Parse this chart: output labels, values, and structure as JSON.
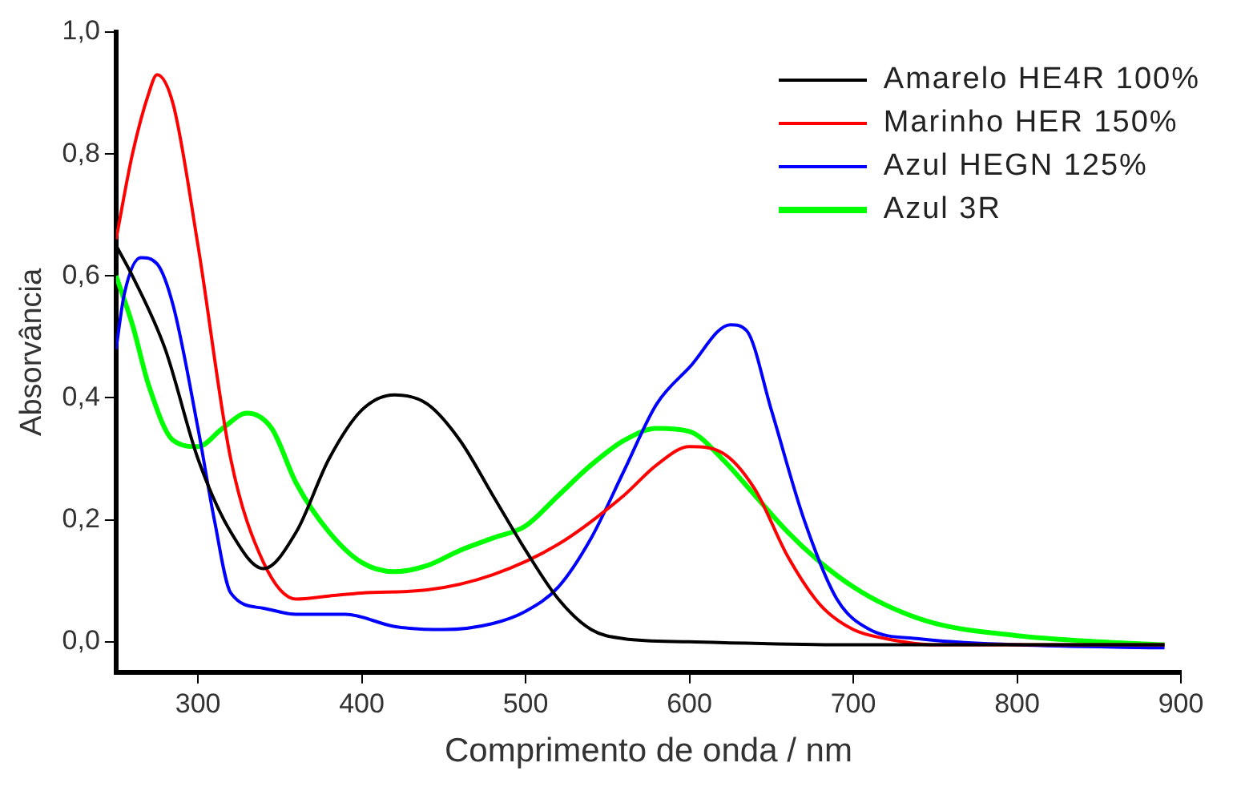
{
  "chart_data": {
    "type": "line",
    "xlabel": "Comprimento de onda / nm",
    "ylabel": "Absorvância",
    "xlim": [
      250,
      900
    ],
    "xticks": [
      300,
      400,
      500,
      600,
      700,
      800,
      900
    ],
    "ylim": [
      -0.05,
      1.0
    ],
    "yticks": [
      {
        "value": 0,
        "label": "0,0"
      },
      {
        "value": 0.2,
        "label": "0,2"
      },
      {
        "value": 0.4,
        "label": "0,4"
      },
      {
        "value": 0.6,
        "label": "0,6"
      },
      {
        "value": 0.8,
        "label": "0,8"
      },
      {
        "value": 1.0,
        "label": "1,0"
      }
    ],
    "grid": false,
    "legend": "top right",
    "marker": "none",
    "line_style": "solid",
    "series": [
      {
        "name": "Amarelo HE4R 100%",
        "color": "#000000",
        "x": [
          250,
          260,
          280,
          300,
          320,
          340,
          360,
          380,
          400,
          420,
          440,
          460,
          480,
          500,
          520,
          540,
          560,
          600,
          700,
          800,
          890
        ],
        "values": [
          0.65,
          0.6,
          0.48,
          0.3,
          0.18,
          0.12,
          0.18,
          0.3,
          0.38,
          0.405,
          0.39,
          0.33,
          0.24,
          0.15,
          0.07,
          0.02,
          0.005,
          0,
          -0.005,
          -0.005,
          -0.005
        ]
      },
      {
        "name": "Marinho HER 150%",
        "color": "#ff0000",
        "x": [
          250,
          260,
          270,
          275,
          285,
          300,
          320,
          340,
          360,
          380,
          400,
          440,
          480,
          520,
          560,
          580,
          600,
          620,
          640,
          660,
          680,
          700,
          720,
          750,
          890
        ],
        "values": [
          0.66,
          0.8,
          0.9,
          0.93,
          0.88,
          0.65,
          0.3,
          0.13,
          0.07,
          0.075,
          0.08,
          0.085,
          0.11,
          0.16,
          0.24,
          0.29,
          0.32,
          0.31,
          0.25,
          0.14,
          0.06,
          0.02,
          0.005,
          -0.005,
          -0.005
        ]
      },
      {
        "name": "Azul HEGN 125%",
        "color": "#0000ff",
        "x": [
          250,
          255,
          265,
          275,
          285,
          300,
          310,
          320,
          340,
          360,
          390,
          420,
          450,
          480,
          500,
          520,
          540,
          560,
          580,
          600,
          625,
          635,
          650,
          670,
          690,
          710,
          740,
          800,
          890
        ],
        "values": [
          0.48,
          0.57,
          0.63,
          0.62,
          0.55,
          0.35,
          0.2,
          0.08,
          0.055,
          0.045,
          0.045,
          0.025,
          0.02,
          0.03,
          0.05,
          0.09,
          0.17,
          0.28,
          0.39,
          0.45,
          0.52,
          0.51,
          0.38,
          0.2,
          0.07,
          0.02,
          0.005,
          -0.005,
          -0.01
        ]
      },
      {
        "name": "Azul 3R",
        "color": "#00ff00",
        "x": [
          250,
          260,
          270,
          285,
          300,
          315,
          330,
          345,
          360,
          380,
          400,
          420,
          440,
          460,
          480,
          500,
          520,
          540,
          560,
          580,
          600,
          620,
          640,
          660,
          680,
          700,
          720,
          750,
          800,
          850,
          890
        ],
        "values": [
          0.6,
          0.52,
          0.42,
          0.33,
          0.32,
          0.35,
          0.375,
          0.35,
          0.26,
          0.18,
          0.13,
          0.115,
          0.125,
          0.15,
          0.17,
          0.19,
          0.24,
          0.29,
          0.33,
          0.35,
          0.345,
          0.3,
          0.24,
          0.18,
          0.13,
          0.09,
          0.06,
          0.03,
          0.01,
          0.0,
          -0.005
        ]
      }
    ]
  }
}
